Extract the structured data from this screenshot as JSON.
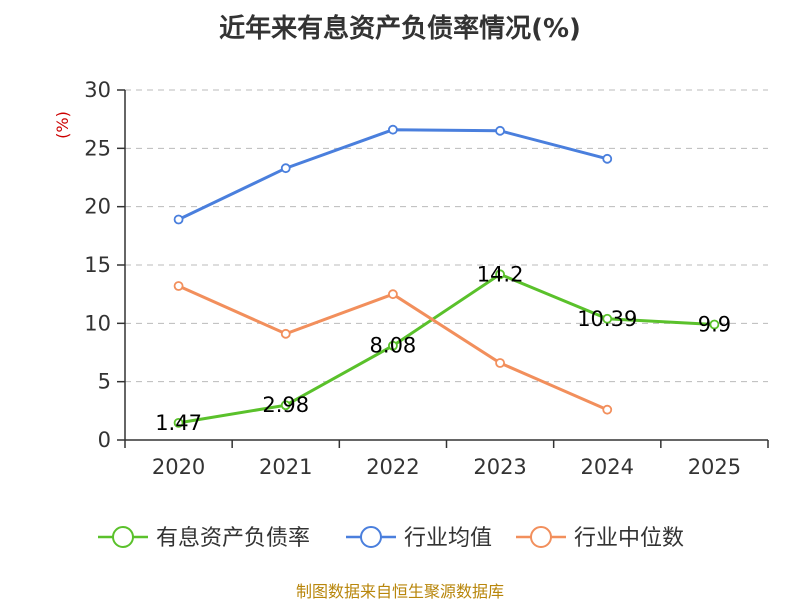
{
  "title": "近年来有息资产负债率情况(%)",
  "source": "制图数据来自恒生聚源数据库",
  "chart_data": {
    "type": "line",
    "title": "近年来有息资产负债率情况(%)",
    "ylabel": "(%)",
    "categories": [
      "2020",
      "2021",
      "2022",
      "2023",
      "2024",
      "2025"
    ],
    "ylim": [
      0,
      30
    ],
    "yticks": [
      0,
      5,
      10,
      15,
      20,
      25,
      30
    ],
    "grid": true,
    "legend_position": "bottom",
    "series": [
      {
        "name": "有息资产负债率",
        "color": "#5ac12b",
        "values": [
          1.47,
          2.98,
          8.08,
          14.2,
          10.39,
          9.9
        ],
        "labels": [
          "1.47",
          "2.98",
          "8.08",
          "14.2",
          "10.39",
          "9.9"
        ]
      },
      {
        "name": "行业均值",
        "color": "#4a7fdd",
        "values": [
          18.9,
          23.3,
          26.6,
          26.5,
          24.1,
          null
        ]
      },
      {
        "name": "行业中位数",
        "color": "#f28f5c",
        "values": [
          13.2,
          9.1,
          12.5,
          6.6,
          2.6,
          null
        ]
      }
    ]
  }
}
